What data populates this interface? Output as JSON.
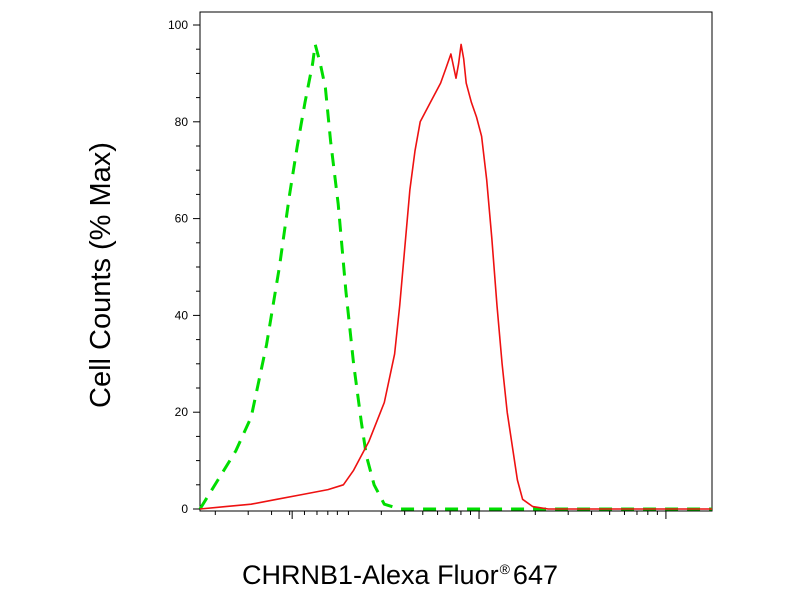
{
  "chart_data": {
    "type": "line",
    "xlabel": {
      "text": "CHRNB1-Alexa Fluor",
      "mark": "®",
      "suffix": "647"
    },
    "ylabel": "Cell Counts (% Max)",
    "y_ticks": [
      "0",
      "20",
      "40",
      "60",
      "80",
      "100"
    ],
    "ylim": [
      0,
      100
    ],
    "x_scale": "log",
    "x_axis_tick_labels_printed": false,
    "grid": false,
    "series": [
      {
        "color": "#00dd00",
        "style": "dashed",
        "points": [
          [
            0.0,
            0
          ],
          [
            0.035,
            6
          ],
          [
            0.07,
            12
          ],
          [
            0.1,
            19
          ],
          [
            0.13,
            34
          ],
          [
            0.155,
            50
          ],
          [
            0.175,
            65
          ],
          [
            0.19,
            75
          ],
          [
            0.205,
            84
          ],
          [
            0.22,
            92
          ],
          [
            0.225,
            96
          ],
          [
            0.235,
            92
          ],
          [
            0.245,
            87
          ],
          [
            0.255,
            76
          ],
          [
            0.27,
            63
          ],
          [
            0.285,
            45
          ],
          [
            0.3,
            30
          ],
          [
            0.315,
            18
          ],
          [
            0.325,
            11
          ],
          [
            0.34,
            5
          ],
          [
            0.36,
            1
          ],
          [
            0.39,
            0
          ],
          [
            0.45,
            0
          ],
          [
            0.5,
            0
          ],
          [
            0.58,
            0
          ],
          [
            0.65,
            0
          ],
          [
            0.72,
            0
          ],
          [
            0.8,
            0
          ],
          [
            0.9,
            0
          ],
          [
            1.0,
            0
          ]
        ]
      },
      {
        "color": "#ee1111",
        "style": "solid",
        "points": [
          [
            0.0,
            0
          ],
          [
            0.05,
            0.5
          ],
          [
            0.1,
            1
          ],
          [
            0.15,
            2
          ],
          [
            0.2,
            3
          ],
          [
            0.25,
            4
          ],
          [
            0.28,
            5
          ],
          [
            0.3,
            8
          ],
          [
            0.31,
            10
          ],
          [
            0.33,
            14
          ],
          [
            0.36,
            22
          ],
          [
            0.38,
            32
          ],
          [
            0.39,
            42
          ],
          [
            0.4,
            54
          ],
          [
            0.41,
            66
          ],
          [
            0.42,
            74
          ],
          [
            0.43,
            80
          ],
          [
            0.45,
            84
          ],
          [
            0.47,
            88
          ],
          [
            0.48,
            91
          ],
          [
            0.49,
            94
          ],
          [
            0.5,
            89
          ],
          [
            0.505,
            92
          ],
          [
            0.51,
            96
          ],
          [
            0.515,
            93
          ],
          [
            0.52,
            88
          ],
          [
            0.53,
            84
          ],
          [
            0.54,
            81
          ],
          [
            0.55,
            77
          ],
          [
            0.56,
            68
          ],
          [
            0.57,
            56
          ],
          [
            0.58,
            42
          ],
          [
            0.59,
            30
          ],
          [
            0.6,
            20
          ],
          [
            0.61,
            13
          ],
          [
            0.62,
            6
          ],
          [
            0.63,
            2
          ],
          [
            0.65,
            0.5
          ],
          [
            0.68,
            0
          ],
          [
            0.75,
            0
          ],
          [
            0.85,
            0
          ],
          [
            1.0,
            0
          ]
        ]
      }
    ]
  }
}
